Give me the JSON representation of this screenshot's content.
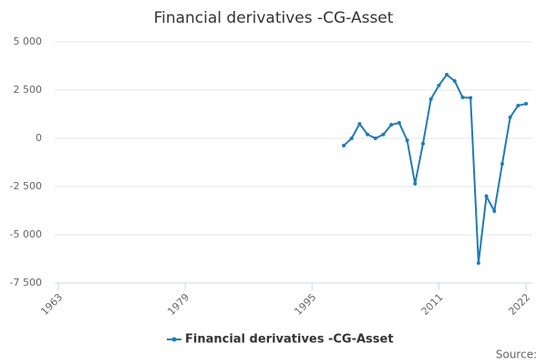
{
  "chart_data": {
    "type": "line",
    "title": "Financial derivatives -CG-Asset",
    "source": "Source:",
    "x": [
      1999,
      2000,
      2001,
      2002,
      2003,
      2004,
      2005,
      2006,
      2007,
      2008,
      2009,
      2010,
      2011,
      2012,
      2013,
      2014,
      2015,
      2016,
      2017,
      2018,
      2019,
      2020,
      2021,
      2022
    ],
    "series": [
      {
        "name": "Financial derivatives -CG-Asset",
        "color": "#1f7bb6",
        "values": [
          -380,
          0,
          750,
          200,
          0,
          200,
          700,
          800,
          -100,
          -2350,
          -280,
          2030,
          2740,
          3300,
          2970,
          2120,
          2100,
          -6460,
          -3000,
          -3770,
          -1320,
          1090,
          1700,
          1790
        ]
      }
    ],
    "xlim": [
      1963,
      2022
    ],
    "xticks": [
      1963,
      1979,
      1995,
      2011,
      2022
    ],
    "ylim": [
      -7500,
      5000
    ],
    "yticks": [
      {
        "value": -7500,
        "label": "-7 500"
      },
      {
        "value": -5000,
        "label": "-5 000"
      },
      {
        "value": -2500,
        "label": "-2 500"
      },
      0,
      {
        "value": 2500,
        "label": "2 500"
      },
      {
        "value": 5000,
        "label": "5 000"
      }
    ],
    "grid": true
  }
}
